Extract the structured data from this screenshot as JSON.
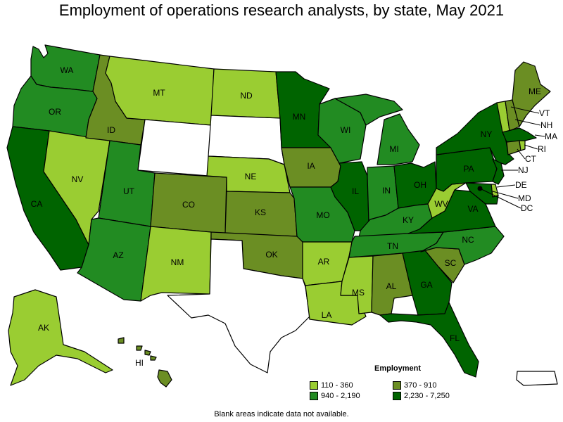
{
  "title": "Employment of operations research analysts, by state, May 2021",
  "legend": {
    "title": "Employment",
    "bins": [
      {
        "label": "110 - 360",
        "color": "#9acd32"
      },
      {
        "label": "370 - 910",
        "color": "#6b8e23"
      },
      {
        "label": "940 - 2,190",
        "color": "#228b22"
      },
      {
        "label": "2,230 - 7,250",
        "color": "#006400"
      }
    ]
  },
  "footnote": "Blank areas indicate data not available.",
  "states": {
    "WA": {
      "bin": 2
    },
    "OR": {
      "bin": 2
    },
    "CA": {
      "bin": 3
    },
    "NV": {
      "bin": 0
    },
    "ID": {
      "bin": 1
    },
    "MT": {
      "bin": 0
    },
    "WY": {
      "bin": null
    },
    "UT": {
      "bin": 2
    },
    "AZ": {
      "bin": 2
    },
    "CO": {
      "bin": 1
    },
    "NM": {
      "bin": 0
    },
    "ND": {
      "bin": 0
    },
    "SD": {
      "bin": null
    },
    "NE": {
      "bin": 0
    },
    "KS": {
      "bin": 1
    },
    "OK": {
      "bin": 1
    },
    "TX": {
      "bin": null
    },
    "MN": {
      "bin": 3
    },
    "IA": {
      "bin": 1
    },
    "MO": {
      "bin": 2
    },
    "AR": {
      "bin": 0
    },
    "LA": {
      "bin": 0
    },
    "WI": {
      "bin": 2
    },
    "IL": {
      "bin": 3
    },
    "MI": {
      "bin": 2
    },
    "IN": {
      "bin": 2
    },
    "OH": {
      "bin": 3
    },
    "KY": {
      "bin": 2
    },
    "TN": {
      "bin": 2
    },
    "MS": {
      "bin": 0
    },
    "AL": {
      "bin": 1
    },
    "GA": {
      "bin": 3
    },
    "FL": {
      "bin": 3
    },
    "SC": {
      "bin": 1
    },
    "NC": {
      "bin": 2
    },
    "VA": {
      "bin": 3
    },
    "WV": {
      "bin": 0
    },
    "PA": {
      "bin": 3
    },
    "NY": {
      "bin": 3
    },
    "NJ": {
      "bin": 3
    },
    "DE": {
      "bin": 0
    },
    "MD": {
      "bin": 3
    },
    "DC": {
      "bin": 3
    },
    "CT": {
      "bin": 1
    },
    "RI": {
      "bin": 0
    },
    "MA": {
      "bin": 3
    },
    "VT": {
      "bin": 0
    },
    "NH": {
      "bin": 1
    },
    "ME": {
      "bin": 1
    },
    "AK": {
      "bin": 0
    },
    "HI": {
      "bin": 1
    },
    "PR": {
      "bin": null
    }
  }
}
